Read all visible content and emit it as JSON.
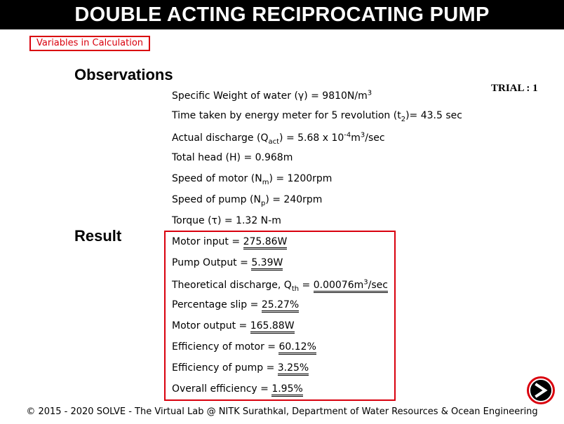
{
  "header": {
    "title": "DOUBLE ACTING RECIPROCATING PUMP"
  },
  "links": {
    "variables": "Variables in Calculation"
  },
  "trial": "TRIAL : 1",
  "observations": {
    "heading": "Observations",
    "specific_weight": {
      "pre": "Specific Weight of water (γ) = 9810N/m",
      "sup": "3"
    },
    "time_taken": {
      "pre": "Time taken by energy meter for 5 revolution (t",
      "sub": "2",
      "post": ")= 43.5 sec"
    },
    "actual_discharge": {
      "pre": "Actual discharge (Q",
      "sub": "act",
      "mid": ") = 5.68 x 10",
      "sup": "-4",
      "mid2": "m",
      "sup2": "3",
      "post": "/sec"
    },
    "total_head": "Total head (H) = 0.968m",
    "speed_motor": {
      "pre": "Speed of motor (N",
      "sub": "m",
      "post": ") = 1200rpm"
    },
    "speed_pump": {
      "pre": "Speed of pump (N",
      "sub": "p",
      "post": ") = 240rpm"
    },
    "torque": "Torque (τ) = 1.32 N-m"
  },
  "result": {
    "heading": "Result",
    "motor_input": {
      "label": "Motor input = ",
      "value": "275.86W"
    },
    "pump_output": {
      "label": "Pump Output = ",
      "value": "5.39W"
    },
    "theoretical_discharge": {
      "label": "Theoretical discharge, Q",
      "sub": "th",
      "eq": " = ",
      "value": "0.00076m",
      "sup": "3",
      "unit": "/sec"
    },
    "percentage_slip": {
      "label": "Percentage slip = ",
      "value": "25.27%"
    },
    "motor_output": {
      "label": "Motor output = ",
      "value": "165.88W"
    },
    "efficiency_motor": {
      "label": "Efficiency of motor = ",
      "value": "60.12%"
    },
    "efficiency_pump": {
      "label": "Efficiency of pump = ",
      "value": "3.25%"
    },
    "overall_efficiency": {
      "label": "Overall efficiency = ",
      "value": "1.95%"
    }
  },
  "footer": "© 2015 - 2020 SOLVE - The Virtual Lab @ NITK Surathkal, Department of Water Resources & Ocean Engineering",
  "icons": {
    "next": "next-arrow-icon"
  },
  "colors": {
    "accent": "#d9000d",
    "titlebar": "#000000"
  }
}
